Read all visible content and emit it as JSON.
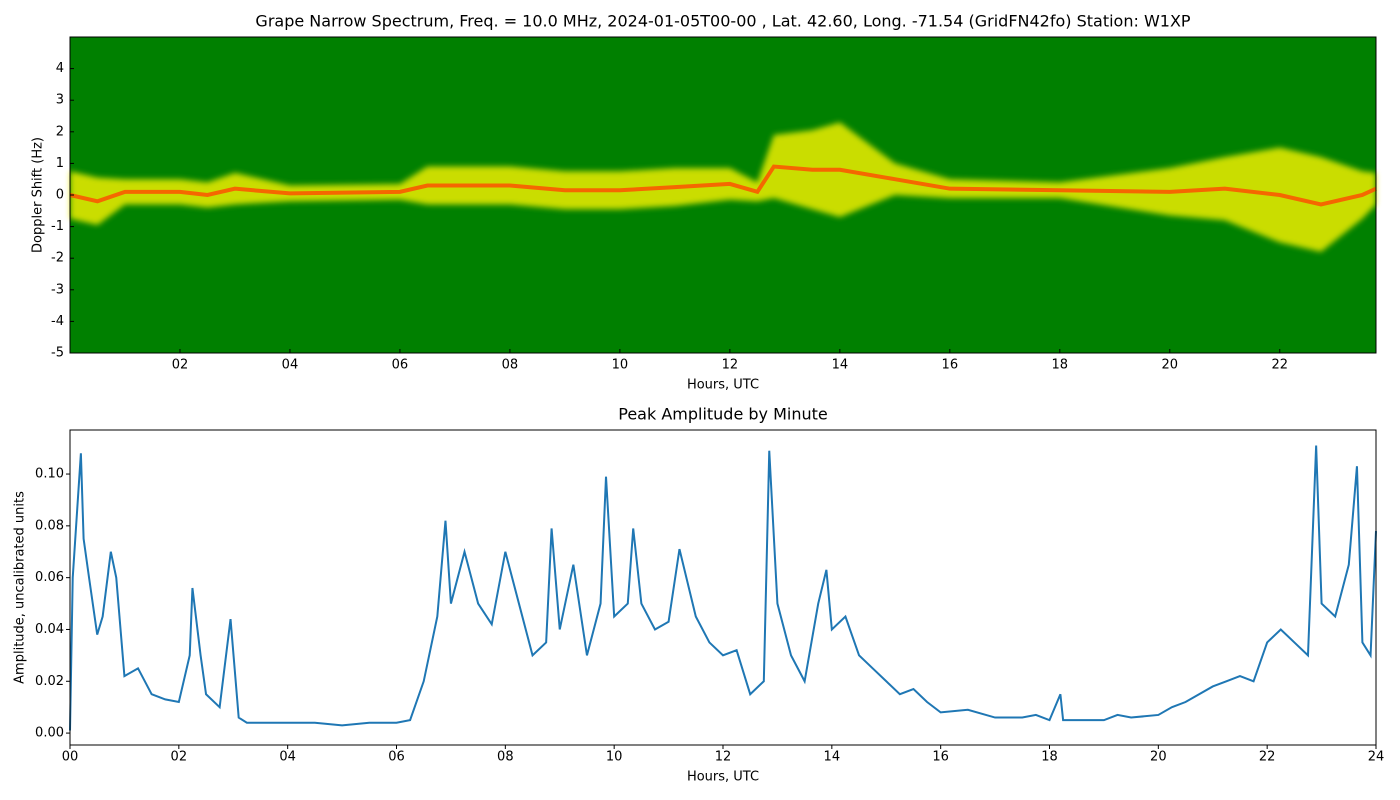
{
  "chart_data": [
    {
      "type": "spectrogram",
      "title": "Grape Narrow Spectrum, Freq. = 10.0 MHz, 2024-01-05T00-00 , Lat.  42.60, Long. -71.54 (GridFN42fo) Station: W1XP",
      "xlabel": "Hours, UTC",
      "ylabel": "Doppler Shift (Hz)",
      "xlim": [
        0,
        23.75
      ],
      "ylim": [
        -5,
        5
      ],
      "xticks": [
        {
          "value": 2,
          "label": "02"
        },
        {
          "value": 4,
          "label": "04"
        },
        {
          "value": 6,
          "label": "06"
        },
        {
          "value": 8,
          "label": "08"
        },
        {
          "value": 10,
          "label": "10"
        },
        {
          "value": 12,
          "label": "12"
        },
        {
          "value": 14,
          "label": "14"
        },
        {
          "value": 16,
          "label": "16"
        },
        {
          "value": 18,
          "label": "18"
        },
        {
          "value": 20,
          "label": "20"
        },
        {
          "value": 22,
          "label": "22"
        }
      ],
      "yticks": [
        -5,
        -4,
        -3,
        -2,
        -1,
        0,
        1,
        2,
        3,
        4
      ],
      "background_color": "#008000",
      "band_color": "#eeee00",
      "core_color": "#ff4a00",
      "x": [
        0,
        0.5,
        1,
        2,
        2.5,
        3,
        4,
        6,
        6.5,
        8,
        9,
        10,
        11,
        12,
        12.5,
        12.8,
        13.5,
        14,
        15,
        16,
        18,
        20,
        21,
        22,
        22.75,
        23.5,
        23.75
      ],
      "values": [
        0,
        -0.2,
        0.1,
        0.1,
        0,
        0.2,
        0.05,
        0.1,
        0.3,
        0.3,
        0.15,
        0.15,
        0.25,
        0.35,
        0.1,
        0.9,
        0.8,
        0.8,
        0.5,
        0.2,
        0.15,
        0.1,
        0.2,
        0,
        -0.3,
        0,
        0.2
      ],
      "spread": [
        1.5,
        1.5,
        0.8,
        0.8,
        0.8,
        1.0,
        0.5,
        0.5,
        1.2,
        1.2,
        1.2,
        1.2,
        1.2,
        1.0,
        0.6,
        2.0,
        2.5,
        3.0,
        1.0,
        0.6,
        0.5,
        1.5,
        2.0,
        3.0,
        3.0,
        1.5,
        1.0
      ]
    },
    {
      "type": "line",
      "title": "Peak Amplitude by Minute",
      "xlabel": "Hours, UTC",
      "ylabel": "Amplitude, uncalibrated units",
      "xlim": [
        0,
        24
      ],
      "ylim": [
        -0.0046,
        0.117
      ],
      "xticks": [
        {
          "value": 0,
          "label": "00"
        },
        {
          "value": 2,
          "label": "02"
        },
        {
          "value": 4,
          "label": "04"
        },
        {
          "value": 6,
          "label": "06"
        },
        {
          "value": 8,
          "label": "08"
        },
        {
          "value": 10,
          "label": "10"
        },
        {
          "value": 12,
          "label": "12"
        },
        {
          "value": 14,
          "label": "14"
        },
        {
          "value": 16,
          "label": "16"
        },
        {
          "value": 18,
          "label": "18"
        },
        {
          "value": 20,
          "label": "20"
        },
        {
          "value": 22,
          "label": "22"
        },
        {
          "value": 24,
          "label": "24"
        }
      ],
      "yticks": [
        {
          "value": 0,
          "label": "0.00"
        },
        0.02,
        0.04,
        0.06,
        0.08,
        {
          "value": 0.1,
          "label": "0.10"
        }
      ],
      "color": "#1f77b4",
      "x": [
        0,
        0.05,
        0.2,
        0.25,
        0.35,
        0.5,
        0.6,
        0.75,
        0.85,
        1,
        1.25,
        1.5,
        1.75,
        2,
        2.2,
        2.25,
        2.4,
        2.5,
        2.75,
        2.95,
        3.1,
        3.25,
        3.5,
        4,
        4.5,
        5,
        5.5,
        6,
        6.25,
        6.5,
        6.75,
        6.9,
        7,
        7.25,
        7.5,
        7.75,
        8,
        8.25,
        8.5,
        8.75,
        8.85,
        9,
        9.25,
        9.5,
        9.75,
        9.85,
        10,
        10.25,
        10.35,
        10.5,
        10.75,
        11,
        11.2,
        11.5,
        11.75,
        12,
        12.25,
        12.5,
        12.75,
        12.85,
        13,
        13.25,
        13.5,
        13.75,
        13.9,
        14,
        14.25,
        14.5,
        14.75,
        15,
        15.25,
        15.5,
        15.75,
        16,
        16.5,
        17,
        17.5,
        17.75,
        18,
        18.2,
        18.25,
        18.5,
        19,
        19.25,
        19.5,
        20,
        20.25,
        20.5,
        21,
        21.25,
        21.5,
        21.75,
        22,
        22.25,
        22.5,
        22.75,
        22.9,
        23,
        23.25,
        23.5,
        23.65,
        23.75,
        23.9,
        24
      ],
      "values": [
        0.001,
        0.06,
        0.108,
        0.075,
        0.06,
        0.038,
        0.045,
        0.07,
        0.06,
        0.022,
        0.025,
        0.015,
        0.013,
        0.012,
        0.03,
        0.056,
        0.03,
        0.015,
        0.01,
        0.044,
        0.006,
        0.004,
        0.004,
        0.004,
        0.004,
        0.003,
        0.004,
        0.004,
        0.005,
        0.02,
        0.045,
        0.082,
        0.05,
        0.07,
        0.05,
        0.042,
        0.07,
        0.05,
        0.03,
        0.035,
        0.079,
        0.04,
        0.065,
        0.03,
        0.05,
        0.099,
        0.045,
        0.05,
        0.079,
        0.05,
        0.04,
        0.043,
        0.071,
        0.045,
        0.035,
        0.03,
        0.032,
        0.015,
        0.02,
        0.109,
        0.05,
        0.03,
        0.02,
        0.05,
        0.063,
        0.04,
        0.045,
        0.03,
        0.025,
        0.02,
        0.015,
        0.017,
        0.012,
        0.008,
        0.009,
        0.006,
        0.006,
        0.007,
        0.005,
        0.015,
        0.005,
        0.005,
        0.005,
        0.007,
        0.006,
        0.007,
        0.01,
        0.012,
        0.018,
        0.02,
        0.022,
        0.02,
        0.035,
        0.04,
        0.035,
        0.03,
        0.111,
        0.05,
        0.045,
        0.065,
        0.103,
        0.035,
        0.03,
        0.078
      ]
    }
  ]
}
